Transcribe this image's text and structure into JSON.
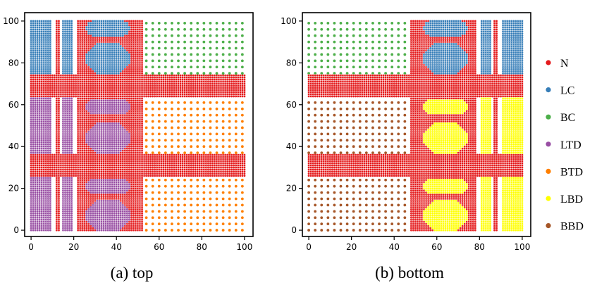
{
  "colors": {
    "N": "#e41a1c",
    "LC": "#377eb8",
    "BC": "#4daf4a",
    "LTD": "#984ea3",
    "BTD": "#ff7f00",
    "LBD": "#ffff00",
    "BBD": "#a65628",
    "border": "#ffffff"
  },
  "legend": {
    "placement": "right",
    "entries": [
      {
        "key": "N",
        "label": "N"
      },
      {
        "key": "LC",
        "label": "LC"
      },
      {
        "key": "BC",
        "label": "BC"
      },
      {
        "key": "LTD",
        "label": "LTD"
      },
      {
        "key": "BTD",
        "label": "BTD"
      },
      {
        "key": "LBD",
        "label": "LBD"
      },
      {
        "key": "BBD",
        "label": "BBD"
      }
    ]
  },
  "chart_data": [
    {
      "type": "scatter",
      "caption": "(a) top",
      "xlim": [
        -3,
        104
      ],
      "ylim": [
        -3,
        104
      ],
      "xticks": [
        0,
        20,
        40,
        60,
        80,
        100
      ],
      "yticks": [
        0,
        20,
        40,
        60,
        80,
        100
      ],
      "grid": false,
      "regions": [
        {
          "cls": "LC",
          "shape": "rect",
          "x": [
            0,
            9
          ],
          "y": [
            75,
            100
          ],
          "step": 1
        },
        {
          "cls": "LC",
          "shape": "rect",
          "x": [
            15,
            19
          ],
          "y": [
            75,
            100
          ],
          "step": 1
        },
        {
          "cls": "N",
          "shape": "rect",
          "x": [
            12,
            13
          ],
          "y": [
            0,
            100
          ],
          "step": 1
        },
        {
          "cls": "N",
          "shape": "rect",
          "x": [
            22,
            23
          ],
          "y": [
            0,
            100
          ],
          "step": 1
        },
        {
          "cls": "N",
          "shape": "rect",
          "x": [
            24,
            48
          ],
          "y": [
            0,
            100
          ],
          "step": 1
        },
        {
          "cls": "N",
          "shape": "rect",
          "x": [
            0,
            100
          ],
          "y": [
            64,
            74
          ],
          "step": 1
        },
        {
          "cls": "N",
          "shape": "rect",
          "x": [
            0,
            100
          ],
          "y": [
            26,
            36
          ],
          "step": 1
        },
        {
          "cls": "N",
          "shape": "rect",
          "x": [
            49,
            52
          ],
          "y": [
            0,
            100
          ],
          "step": 1
        },
        {
          "cls": "LC",
          "shape": "pill",
          "x": [
            26,
            46
          ],
          "y": [
            93,
            100
          ],
          "step": 1
        },
        {
          "cls": "LC",
          "shape": "oct",
          "x": [
            26,
            46
          ],
          "y": [
            75,
            89
          ],
          "step": 1
        },
        {
          "cls": "BC",
          "shape": "rect",
          "x": [
            54,
            100
          ],
          "y": [
            75,
            100
          ],
          "step": 3
        },
        {
          "cls": "LTD",
          "shape": "rect",
          "x": [
            0,
            9
          ],
          "y": [
            37,
            63
          ],
          "step": 1
        },
        {
          "cls": "LTD",
          "shape": "rect",
          "x": [
            15,
            19
          ],
          "y": [
            37,
            63
          ],
          "step": 1
        },
        {
          "cls": "LTD",
          "shape": "pill",
          "x": [
            26,
            46
          ],
          "y": [
            56,
            62
          ],
          "step": 1
        },
        {
          "cls": "LTD",
          "shape": "oct",
          "x": [
            26,
            46
          ],
          "y": [
            37,
            51
          ],
          "step": 1
        },
        {
          "cls": "BTD",
          "shape": "rect",
          "x": [
            54,
            100
          ],
          "y": [
            37,
            63
          ],
          "step": 3
        },
        {
          "cls": "LTD",
          "shape": "rect",
          "x": [
            0,
            9
          ],
          "y": [
            0,
            25
          ],
          "step": 1
        },
        {
          "cls": "LTD",
          "shape": "rect",
          "x": [
            15,
            19
          ],
          "y": [
            0,
            25
          ],
          "step": 1
        },
        {
          "cls": "LTD",
          "shape": "pill",
          "x": [
            26,
            46
          ],
          "y": [
            18,
            24
          ],
          "step": 1
        },
        {
          "cls": "LTD",
          "shape": "oct",
          "x": [
            26,
            46
          ],
          "y": [
            0,
            14
          ],
          "step": 1
        },
        {
          "cls": "BTD",
          "shape": "rect",
          "x": [
            54,
            100
          ],
          "y": [
            0,
            25
          ],
          "step": 3
        }
      ]
    },
    {
      "type": "scatter",
      "caption": "(b) bottom",
      "xlim": [
        -3,
        104
      ],
      "ylim": [
        -3,
        104
      ],
      "xticks": [
        0,
        20,
        40,
        60,
        80,
        100
      ],
      "yticks": [
        0,
        20,
        40,
        60,
        80,
        100
      ],
      "grid": false,
      "regions": [
        {
          "cls": "BC",
          "shape": "rect",
          "x": [
            0,
            46
          ],
          "y": [
            75,
            100
          ],
          "step": 3
        },
        {
          "cls": "N",
          "shape": "rect",
          "x": [
            48,
            51
          ],
          "y": [
            0,
            100
          ],
          "step": 1
        },
        {
          "cls": "N",
          "shape": "rect",
          "x": [
            52,
            76
          ],
          "y": [
            0,
            100
          ],
          "step": 1
        },
        {
          "cls": "N",
          "shape": "rect",
          "x": [
            77,
            78
          ],
          "y": [
            0,
            100
          ],
          "step": 1
        },
        {
          "cls": "N",
          "shape": "rect",
          "x": [
            87,
            88
          ],
          "y": [
            0,
            100
          ],
          "step": 1
        },
        {
          "cls": "N",
          "shape": "rect",
          "x": [
            0,
            100
          ],
          "y": [
            64,
            74
          ],
          "step": 1
        },
        {
          "cls": "N",
          "shape": "rect",
          "x": [
            0,
            100
          ],
          "y": [
            26,
            36
          ],
          "step": 1
        },
        {
          "cls": "LC",
          "shape": "pill",
          "x": [
            54,
            74
          ],
          "y": [
            93,
            100
          ],
          "step": 1
        },
        {
          "cls": "LC",
          "shape": "oct",
          "x": [
            54,
            74
          ],
          "y": [
            75,
            89
          ],
          "step": 1
        },
        {
          "cls": "LC",
          "shape": "rect",
          "x": [
            81,
            85
          ],
          "y": [
            75,
            100
          ],
          "step": 1
        },
        {
          "cls": "LC",
          "shape": "rect",
          "x": [
            91,
            100
          ],
          "y": [
            75,
            100
          ],
          "step": 1
        },
        {
          "cls": "BBD",
          "shape": "rect",
          "x": [
            0,
            46
          ],
          "y": [
            37,
            63
          ],
          "step": 3
        },
        {
          "cls": "LBD",
          "shape": "pill",
          "x": [
            54,
            74
          ],
          "y": [
            56,
            62
          ],
          "step": 1
        },
        {
          "cls": "LBD",
          "shape": "oct",
          "x": [
            54,
            74
          ],
          "y": [
            37,
            51
          ],
          "step": 1
        },
        {
          "cls": "LBD",
          "shape": "rect",
          "x": [
            81,
            85
          ],
          "y": [
            37,
            63
          ],
          "step": 1
        },
        {
          "cls": "LBD",
          "shape": "rect",
          "x": [
            91,
            100
          ],
          "y": [
            37,
            63
          ],
          "step": 1
        },
        {
          "cls": "BBD",
          "shape": "rect",
          "x": [
            0,
            46
          ],
          "y": [
            0,
            25
          ],
          "step": 3
        },
        {
          "cls": "LBD",
          "shape": "pill",
          "x": [
            54,
            74
          ],
          "y": [
            18,
            24
          ],
          "step": 1
        },
        {
          "cls": "LBD",
          "shape": "oct",
          "x": [
            54,
            74
          ],
          "y": [
            0,
            14
          ],
          "step": 1
        },
        {
          "cls": "LBD",
          "shape": "rect",
          "x": [
            81,
            85
          ],
          "y": [
            0,
            25
          ],
          "step": 1
        },
        {
          "cls": "LBD",
          "shape": "rect",
          "x": [
            91,
            100
          ],
          "y": [
            0,
            25
          ],
          "step": 1
        }
      ]
    }
  ]
}
